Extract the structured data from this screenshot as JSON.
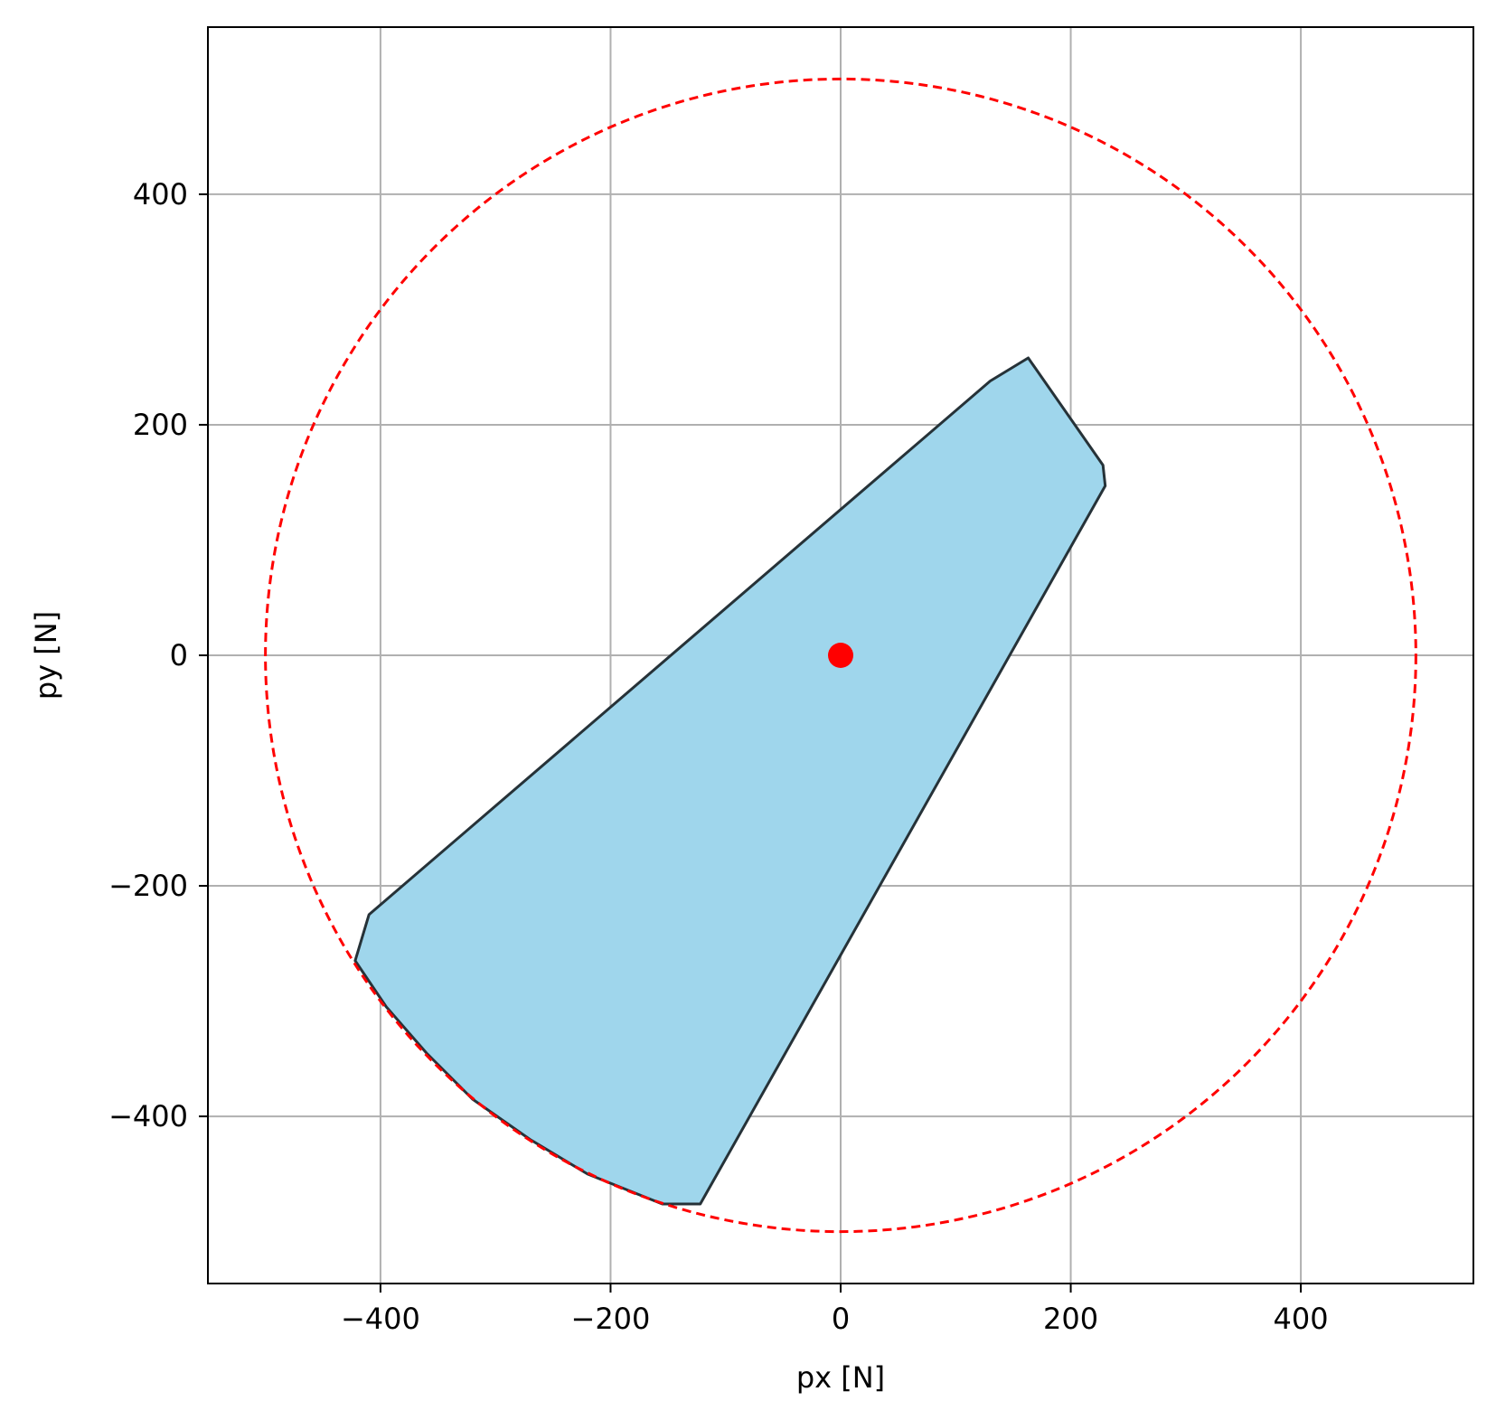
{
  "chart_data": {
    "type": "area",
    "title": "",
    "xlabel": "px [N]",
    "ylabel": "py [N]",
    "xlim": [
      -550,
      550
    ],
    "ylim": [
      -545,
      545
    ],
    "xticks": [
      -400,
      -200,
      0,
      200,
      400
    ],
    "yticks": [
      -400,
      -200,
      0,
      200,
      400
    ],
    "xtick_labels": [
      "−400",
      "−200",
      "0",
      "200",
      "400"
    ],
    "ytick_labels": [
      "−400",
      "−200",
      "0",
      "200",
      "400"
    ],
    "grid": true,
    "circle": {
      "center": [
        0,
        0
      ],
      "radius": 500,
      "color": "#ff0000",
      "style": "dashed"
    },
    "marker": {
      "x": 0,
      "y": 0,
      "color": "#ff0000"
    },
    "region": {
      "fill": "#9fd6ec",
      "edge": "#263238",
      "points": [
        [
          -422,
          -265
        ],
        [
          -410,
          -225
        ],
        [
          130,
          238
        ],
        [
          163,
          258
        ],
        [
          228,
          165
        ],
        [
          230,
          147
        ],
        [
          -122,
          -476
        ],
        [
          -155,
          -476
        ],
        [
          -220,
          -450
        ],
        [
          -270,
          -420
        ],
        [
          -320,
          -385
        ],
        [
          -360,
          -345
        ],
        [
          -395,
          -305
        ],
        [
          -422,
          -265
        ]
      ]
    }
  }
}
